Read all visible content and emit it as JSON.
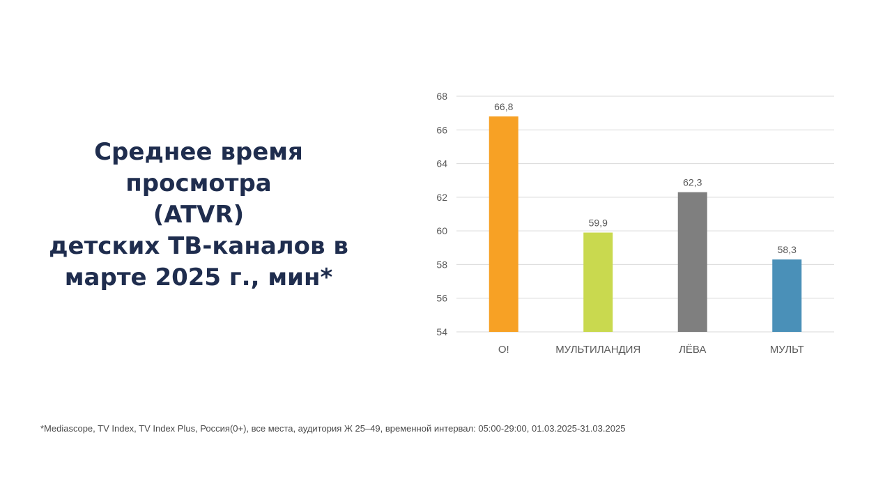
{
  "title_lines": [
    "Среднее время",
    "просмотра",
    "(ATVR)",
    "детских ТВ-каналов в",
    "марте 2025 г., мин*"
  ],
  "footnote": "*Mediascope, TV Index, TV Index Plus, Россия(0+), все места, аудитория Ж 25–49, временной интервал: 05:00-29:00, 01.03.2025-31.03.2025",
  "chart_data": {
    "type": "bar",
    "categories": [
      "О!",
      "МУЛЬТИЛАНДИЯ",
      "ЛЁВА",
      "МУЛЬТ"
    ],
    "values": [
      66.8,
      59.9,
      62.3,
      58.3
    ],
    "data_labels": [
      "66,8",
      "59,9",
      "62,3",
      "58,3"
    ],
    "colors": [
      "#f7a125",
      "#c9d94f",
      "#7f7f7f",
      "#4a90b8"
    ],
    "ylim": [
      54,
      68
    ],
    "yticks": [
      54,
      56,
      58,
      60,
      62,
      64,
      66,
      68
    ],
    "grid": true,
    "xlabel": "",
    "ylabel": ""
  }
}
